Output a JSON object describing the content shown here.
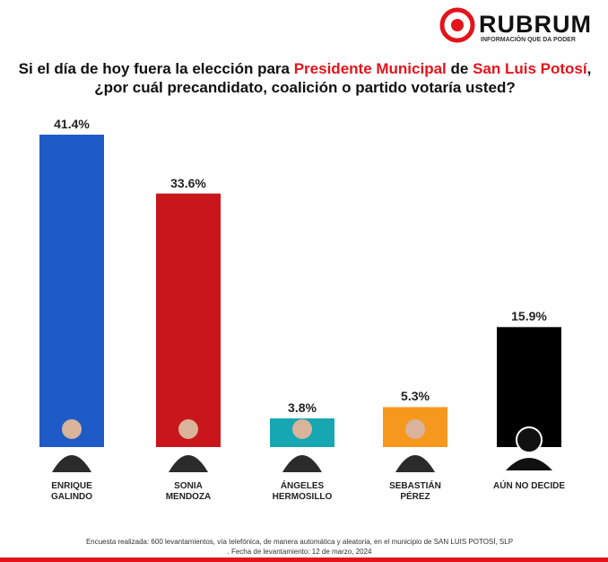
{
  "brand": {
    "name": "RUBRUM",
    "tagline": "INFORMACIÓN QUE DA PODER"
  },
  "chart_data": {
    "type": "bar",
    "title_parts": [
      "Si el día de hoy fuera la elección para ",
      "Presidente Municipal",
      " de ",
      "San Luis Potosí",
      ", ¿por cuál precandidato, coalición o partido votaría usted?"
    ],
    "categories": [
      "ENRIQUE GALINDO",
      "SONIA MENDOZA",
      "ÁNGELES HERMOSILLO",
      "SEBASTIÁN PÉREZ",
      "AÚN NO DECIDE"
    ],
    "values": [
      41.4,
      33.6,
      3.8,
      5.3,
      15.9
    ],
    "value_labels": [
      "41.4%",
      "33.6%",
      "3.8%",
      "5.3%",
      "15.9%"
    ],
    "colors": [
      "#1f5bc6",
      "#c8161c",
      "#17a7b2",
      "#f6981d",
      "#000000"
    ]
  },
  "footnote": [
    "Encuesta realizada: 600 levantamientos, vía telefónica, de manera automática y aleatoria, en el municipio de SAN LUIS POTOSÍ, SLP",
    ". Fecha de levantamiento: 12 de marzo, 2024"
  ]
}
